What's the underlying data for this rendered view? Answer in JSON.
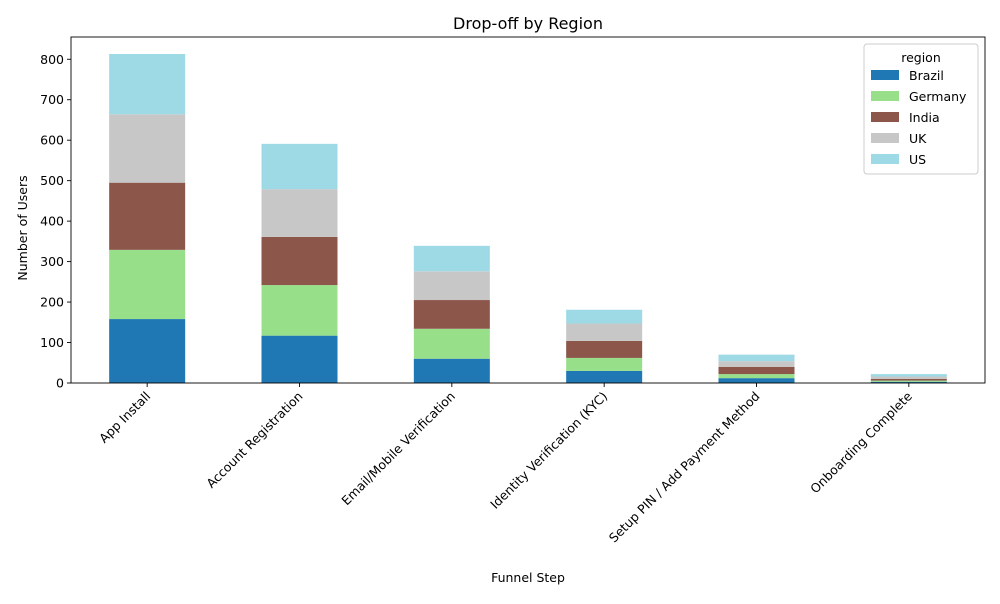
{
  "chart_data": {
    "type": "bar",
    "stacked": true,
    "title": "Drop-off by Region",
    "xlabel": "Funnel Step",
    "ylabel": "Number of Users",
    "ylim": [
      0,
      855
    ],
    "yticks": [
      0,
      100,
      200,
      300,
      400,
      500,
      600,
      700,
      800
    ],
    "grid": false,
    "legend": {
      "title": "region",
      "placement": "top-right"
    },
    "categories": [
      "App Install",
      "Account Registration",
      "Email/Mobile Verification",
      "Identity Verification (KYC)",
      "Setup PIN / Add Payment Method",
      "Onboarding Complete"
    ],
    "series": [
      {
        "name": "Brazil",
        "color": "#1f77b4",
        "values": [
          158,
          117,
          60,
          30,
          12,
          3
        ]
      },
      {
        "name": "Germany",
        "color": "#98df8a",
        "values": [
          171,
          125,
          74,
          32,
          10,
          3
        ]
      },
      {
        "name": "India",
        "color": "#8c564b",
        "values": [
          166,
          119,
          71,
          42,
          18,
          4
        ]
      },
      {
        "name": "UK",
        "color": "#c7c7c7",
        "values": [
          169,
          118,
          71,
          43,
          14,
          6
        ]
      },
      {
        "name": "US",
        "color": "#9edae5",
        "values": [
          149,
          112,
          63,
          34,
          16,
          6
        ]
      }
    ]
  }
}
